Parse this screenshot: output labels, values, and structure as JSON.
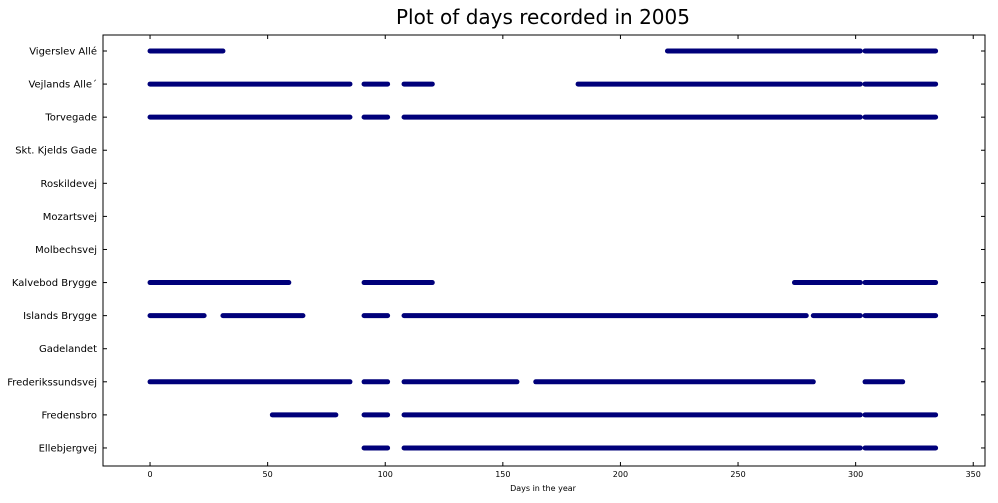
{
  "chart_data": {
    "type": "scatter",
    "title": "Plot of days recorded in 2005",
    "xlabel": "Days in the year",
    "ylabel": "",
    "xlim": [
      -20,
      355
    ],
    "x_ticks": [
      0,
      50,
      100,
      150,
      200,
      250,
      300,
      350
    ],
    "grid": false,
    "legend": "none",
    "marker_color": "#00007a",
    "categories": [
      "Vigerslev Allé",
      "Vejlands Alle´",
      "Torvegade",
      "Skt. Kjelds Gade",
      "Roskildevej",
      "Mozartsvej",
      "Molbechsvej",
      "Kalvebod Brygge",
      "Islands Brygge",
      "Gadelandet",
      "Frederikssundsvej",
      "Fredensbro",
      "Ellebjergvej"
    ],
    "series": [
      {
        "station": "Vigerslev Allé",
        "day_ranges": [
          [
            0,
            31
          ],
          [
            220,
            302
          ],
          [
            304,
            334
          ]
        ]
      },
      {
        "station": "Vejlands Alle´",
        "day_ranges": [
          [
            0,
            85
          ],
          [
            91,
            101
          ],
          [
            108,
            120
          ],
          [
            182,
            302
          ],
          [
            304,
            334
          ]
        ]
      },
      {
        "station": "Torvegade",
        "day_ranges": [
          [
            0,
            85
          ],
          [
            91,
            101
          ],
          [
            108,
            302
          ],
          [
            304,
            334
          ]
        ]
      },
      {
        "station": "Skt. Kjelds Gade",
        "day_ranges": []
      },
      {
        "station": "Roskildevej",
        "day_ranges": []
      },
      {
        "station": "Mozartsvej",
        "day_ranges": []
      },
      {
        "station": "Molbechsvej",
        "day_ranges": []
      },
      {
        "station": "Kalvebod Brygge",
        "day_ranges": [
          [
            0,
            59
          ],
          [
            91,
            120
          ],
          [
            274,
            302
          ],
          [
            304,
            334
          ]
        ]
      },
      {
        "station": "Islands Brygge",
        "day_ranges": [
          [
            0,
            23
          ],
          [
            31,
            65
          ],
          [
            91,
            101
          ],
          [
            108,
            279
          ],
          [
            282,
            302
          ],
          [
            304,
            334
          ]
        ]
      },
      {
        "station": "Gadelandet",
        "day_ranges": []
      },
      {
        "station": "Frederikssundsvej",
        "day_ranges": [
          [
            0,
            85
          ],
          [
            91,
            101
          ],
          [
            108,
            156
          ],
          [
            164,
            282
          ],
          [
            304,
            320
          ]
        ]
      },
      {
        "station": "Fredensbro",
        "day_ranges": [
          [
            52,
            79
          ],
          [
            91,
            101
          ],
          [
            108,
            302
          ],
          [
            304,
            334
          ]
        ]
      },
      {
        "station": "Ellebjergvej",
        "day_ranges": [
          [
            91,
            101
          ],
          [
            108,
            302
          ],
          [
            304,
            334
          ]
        ]
      }
    ]
  }
}
